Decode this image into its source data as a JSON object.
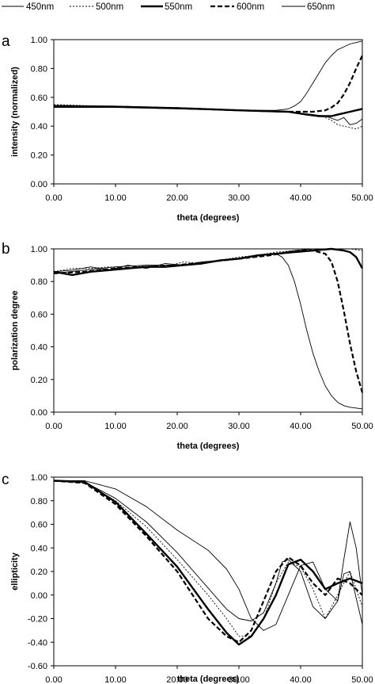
{
  "legend": [
    {
      "name": "450nm",
      "dash": "",
      "width": 0.9
    },
    {
      "name": "500nm",
      "dash": "2,2",
      "width": 0.9
    },
    {
      "name": "550nm",
      "dash": "",
      "width": 2.4
    },
    {
      "name": "600nm",
      "dash": "6,3",
      "width": 2.2
    },
    {
      "name": "650nm",
      "dash": "",
      "width": 0.9
    }
  ],
  "chart_data": [
    {
      "type": "line",
      "panel_label": "a",
      "xlabel": "theta (degrees)",
      "ylabel": "intensity (normalized)",
      "xlim": [
        0,
        50
      ],
      "ylim": [
        0,
        1.0
      ],
      "x_ticks": [
        "0.00",
        "10.00",
        "20.00",
        "30.00",
        "40.00",
        "50.00"
      ],
      "y_ticks": [
        "0.00",
        "0.20",
        "0.40",
        "0.60",
        "0.80",
        "1.00"
      ],
      "series": [
        {
          "name": "450nm",
          "x": [
            0,
            10,
            20,
            30,
            38,
            40,
            42,
            44,
            46,
            47,
            48,
            49,
            50
          ],
          "y": [
            0.54,
            0.535,
            0.525,
            0.51,
            0.5,
            0.49,
            0.48,
            0.47,
            0.44,
            0.46,
            0.41,
            0.42,
            0.45
          ]
        },
        {
          "name": "500nm",
          "x": [
            0,
            10,
            20,
            30,
            38,
            40,
            42,
            44,
            45,
            46,
            47,
            48,
            49,
            50
          ],
          "y": [
            0.55,
            0.535,
            0.525,
            0.51,
            0.5,
            0.49,
            0.48,
            0.46,
            0.44,
            0.41,
            0.4,
            0.39,
            0.38,
            0.4
          ]
        },
        {
          "name": "550nm",
          "x": [
            0,
            10,
            20,
            30,
            38,
            41,
            43,
            45,
            46,
            47,
            48,
            49,
            50
          ],
          "y": [
            0.54,
            0.535,
            0.525,
            0.51,
            0.5,
            0.48,
            0.47,
            0.47,
            0.48,
            0.49,
            0.5,
            0.51,
            0.52
          ]
        },
        {
          "name": "600nm",
          "x": [
            0,
            10,
            20,
            30,
            38,
            40,
            42,
            44,
            45,
            46,
            47,
            48,
            49,
            50
          ],
          "y": [
            0.54,
            0.535,
            0.525,
            0.51,
            0.5,
            0.5,
            0.5,
            0.51,
            0.53,
            0.56,
            0.62,
            0.7,
            0.8,
            0.89
          ]
        },
        {
          "name": "650nm",
          "x": [
            0,
            10,
            20,
            30,
            36,
            38,
            39,
            40,
            41,
            42,
            43,
            44,
            45,
            46,
            47,
            48,
            49,
            50
          ],
          "y": [
            0.53,
            0.53,
            0.52,
            0.51,
            0.51,
            0.52,
            0.54,
            0.57,
            0.63,
            0.7,
            0.77,
            0.84,
            0.89,
            0.93,
            0.95,
            0.97,
            0.98,
            0.99
          ]
        }
      ]
    },
    {
      "type": "line",
      "panel_label": "b",
      "xlabel": "theta (degrees)",
      "ylabel": "polarization degree",
      "xlim": [
        0,
        50
      ],
      "ylim": [
        0,
        1.0
      ],
      "x_ticks": [
        "0.00",
        "10.00",
        "20.00",
        "30.00",
        "40.00",
        "50.00"
      ],
      "y_ticks": [
        "0.00",
        "0.20",
        "0.40",
        "0.60",
        "0.80",
        "1.00"
      ],
      "series": [
        {
          "name": "450nm",
          "x": [
            0,
            3,
            6,
            9,
            12,
            15,
            18,
            21,
            24,
            27,
            30,
            33,
            36,
            39,
            42,
            45,
            48,
            50
          ],
          "y": [
            0.86,
            0.87,
            0.89,
            0.87,
            0.9,
            0.88,
            0.91,
            0.9,
            0.92,
            0.93,
            0.94,
            0.96,
            0.97,
            0.99,
            1.0,
            1.0,
            1.0,
            1.0
          ]
        },
        {
          "name": "500nm",
          "x": [
            0,
            3,
            6,
            9,
            12,
            15,
            18,
            21,
            24,
            27,
            30,
            33,
            36,
            39,
            42,
            45,
            48,
            50
          ],
          "y": [
            0.86,
            0.88,
            0.88,
            0.89,
            0.88,
            0.9,
            0.89,
            0.92,
            0.91,
            0.93,
            0.95,
            0.96,
            0.98,
            0.99,
            1.0,
            1.0,
            1.0,
            0.99
          ]
        },
        {
          "name": "550nm",
          "x": [
            0,
            3,
            6,
            9,
            12,
            15,
            18,
            21,
            24,
            27,
            30,
            33,
            36,
            39,
            42,
            45,
            47,
            48,
            49,
            50
          ],
          "y": [
            0.86,
            0.84,
            0.86,
            0.87,
            0.88,
            0.89,
            0.89,
            0.9,
            0.91,
            0.93,
            0.94,
            0.96,
            0.97,
            0.98,
            0.99,
            1.0,
            0.99,
            0.98,
            0.95,
            0.88
          ]
        },
        {
          "name": "600nm",
          "x": [
            0,
            5,
            10,
            15,
            20,
            25,
            30,
            35,
            38,
            40,
            42,
            44,
            45,
            46,
            47,
            48,
            49,
            50
          ],
          "y": [
            0.85,
            0.86,
            0.88,
            0.89,
            0.9,
            0.92,
            0.94,
            0.96,
            0.98,
            0.99,
            0.99,
            0.97,
            0.92,
            0.8,
            0.62,
            0.42,
            0.25,
            0.12
          ]
        },
        {
          "name": "650nm",
          "x": [
            0,
            5,
            10,
            15,
            20,
            25,
            30,
            34,
            36,
            37,
            38,
            39,
            40,
            41,
            42,
            43,
            44,
            45,
            46,
            47,
            48,
            50
          ],
          "y": [
            0.85,
            0.87,
            0.89,
            0.9,
            0.9,
            0.92,
            0.94,
            0.96,
            0.97,
            0.95,
            0.9,
            0.8,
            0.66,
            0.5,
            0.36,
            0.25,
            0.16,
            0.1,
            0.06,
            0.04,
            0.03,
            0.02
          ]
        }
      ]
    },
    {
      "type": "line",
      "panel_label": "c",
      "xlabel": "theta (degrees)",
      "ylabel": "ellipticity",
      "xlim": [
        0,
        50
      ],
      "ylim": [
        -0.6,
        1.0
      ],
      "x_ticks": [
        "0.00",
        "10.00",
        "20.00",
        "30.00",
        "40.00",
        "50.00"
      ],
      "y_ticks": [
        "-0.60",
        "-0.40",
        "-0.20",
        "0.00",
        "0.20",
        "0.40",
        "0.60",
        "0.80",
        "1.00"
      ],
      "series": [
        {
          "name": "450nm",
          "x": [
            0,
            5,
            10,
            15,
            20,
            25,
            28,
            30,
            32,
            34,
            36,
            37,
            38,
            40,
            42,
            44,
            46,
            47,
            48,
            50
          ],
          "y": [
            0.97,
            0.96,
            0.82,
            0.62,
            0.36,
            0.06,
            -0.12,
            -0.2,
            -0.22,
            -0.15,
            0.1,
            0.28,
            0.3,
            0.2,
            -0.1,
            -0.2,
            -0.05,
            0.18,
            0.2,
            -0.25
          ]
        },
        {
          "name": "500nm",
          "x": [
            0,
            5,
            10,
            15,
            20,
            25,
            28,
            30,
            32,
            34,
            36,
            38,
            40,
            42,
            44,
            46,
            48,
            50
          ],
          "y": [
            0.97,
            0.95,
            0.8,
            0.58,
            0.3,
            0.0,
            -0.2,
            -0.35,
            -0.35,
            -0.2,
            0.1,
            0.28,
            0.24,
            0.05,
            -0.2,
            0.0,
            0.2,
            -0.1
          ]
        },
        {
          "name": "550nm",
          "x": [
            0,
            5,
            10,
            15,
            20,
            25,
            28,
            30,
            32,
            34,
            36,
            38,
            40,
            42,
            44,
            46,
            48,
            50
          ],
          "y": [
            0.97,
            0.96,
            0.79,
            0.52,
            0.24,
            -0.12,
            -0.32,
            -0.42,
            -0.35,
            -0.2,
            0.0,
            0.26,
            0.3,
            0.2,
            0.05,
            0.1,
            0.14,
            0.1
          ]
        },
        {
          "name": "600nm",
          "x": [
            0,
            5,
            10,
            15,
            20,
            25,
            28,
            30,
            32,
            34,
            36,
            38,
            40,
            42,
            44,
            46,
            48,
            50
          ],
          "y": [
            0.97,
            0.95,
            0.77,
            0.5,
            0.2,
            -0.2,
            -0.35,
            -0.4,
            -0.3,
            -0.05,
            0.2,
            0.32,
            0.25,
            0.1,
            0.0,
            0.14,
            0.1,
            0.0
          ]
        },
        {
          "name": "650nm",
          "x": [
            0,
            5,
            10,
            15,
            20,
            25,
            28,
            30,
            32,
            34,
            36,
            38,
            40,
            42,
            44,
            46,
            47,
            48,
            49,
            50
          ],
          "y": [
            0.97,
            0.97,
            0.9,
            0.75,
            0.55,
            0.38,
            0.22,
            0.05,
            -0.2,
            -0.3,
            -0.25,
            0.0,
            0.25,
            0.28,
            0.05,
            -0.05,
            0.3,
            0.62,
            0.4,
            0.0
          ]
        }
      ]
    }
  ]
}
